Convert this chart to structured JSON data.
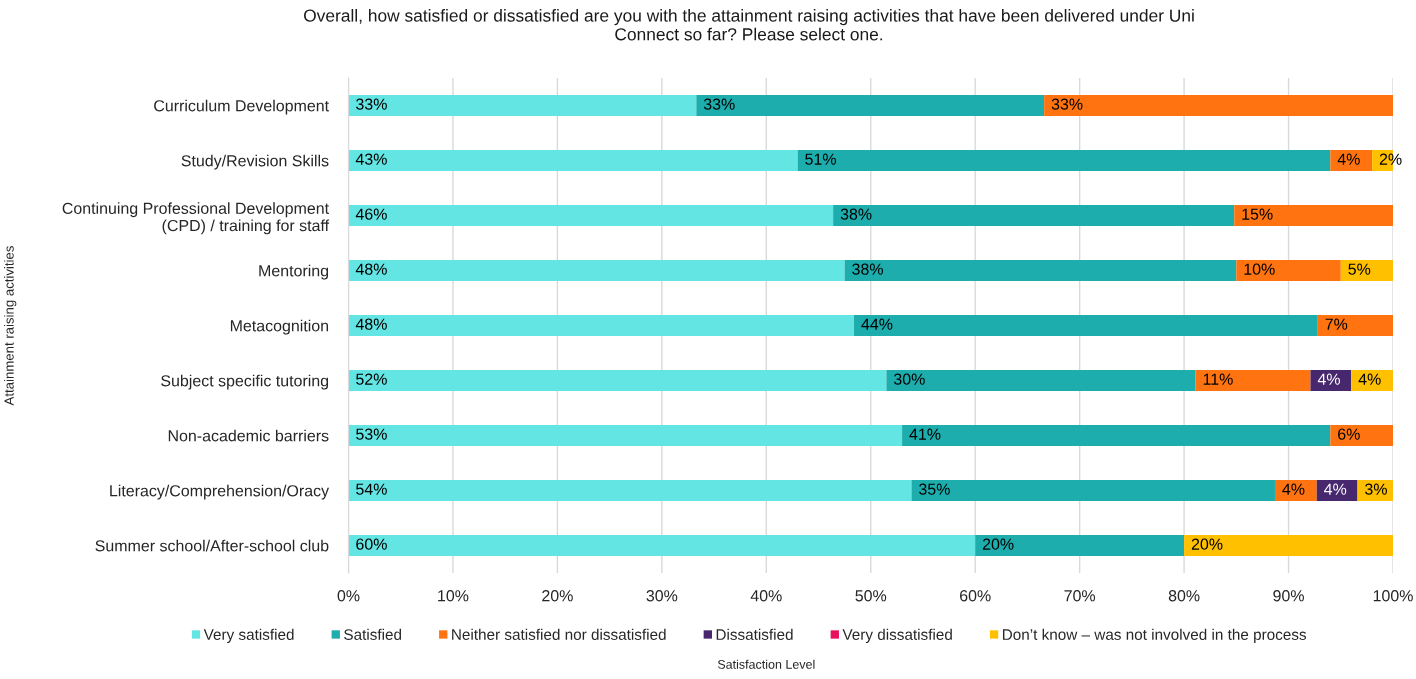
{
  "chart_data": {
    "type": "bar",
    "orientation": "horizontal",
    "stacked": true,
    "title": "Overall, how satisfied or dissatisfied are you with the attainment raising activities that have been delivered under Uni\nConnect so far? Please select one.",
    "xlabel": "Satisfaction Level",
    "ylabel": "Attainment raising activities",
    "categories": [
      "Curriculum Development",
      "Study/Revision Skills",
      "Continuing Professional Development\n(CPD) / training for staff",
      "Mentoring",
      "Metacognition",
      "Subject specific tutoring",
      "Non-academic barriers",
      "Literacy/Comprehension/Oracy",
      "Summer school/After-school club"
    ],
    "series": [
      {
        "name": "Very satisfied",
        "color": "#63e5e4",
        "values": [
          33.3,
          43,
          46.4,
          47.5,
          48.4,
          51.5,
          53,
          53.9,
          60
        ],
        "value_labels": [
          "33%",
          "43%",
          "46%",
          "48%",
          "48%",
          "52%",
          "53%",
          "54%",
          "60%"
        ]
      },
      {
        "name": "Satisfied",
        "color": "#1dadad",
        "values": [
          33.3,
          51,
          38.4,
          37.5,
          44.4,
          29.6,
          41,
          34.8,
          20
        ],
        "value_labels": [
          "33%",
          "51%",
          "38%",
          "38%",
          "44%",
          "30%",
          "41%",
          "35%",
          "20%"
        ]
      },
      {
        "name": "Neither satisfied nor dissatisfied",
        "color": "#ff7410",
        "values": [
          33.4,
          4,
          15.2,
          10,
          7.2,
          11.0,
          6,
          4.0,
          null
        ],
        "value_labels": [
          "33%",
          "4%",
          "15%",
          "10%",
          "7%",
          "11%",
          "6%",
          "4%",
          null
        ]
      },
      {
        "name": "Dissatisfied",
        "color": "#47286e",
        "values": [
          null,
          null,
          null,
          null,
          null,
          3.9,
          null,
          3.9,
          null
        ],
        "value_labels": [
          null,
          null,
          null,
          null,
          null,
          "4%",
          null,
          "4%",
          null
        ]
      },
      {
        "name": "Very dissatisfied",
        "color": "#e8115d",
        "values": [
          null,
          null,
          null,
          null,
          null,
          null,
          null,
          null,
          null
        ]
      },
      {
        "name": "Don’t know – was not involved in the process",
        "color": "#ffc000",
        "values": [
          null,
          2,
          null,
          5,
          null,
          4.0,
          null,
          3.4,
          20
        ],
        "value_labels": [
          null,
          "2%",
          null,
          "5%",
          null,
          "4%",
          null,
          "3%",
          "20%"
        ]
      }
    ],
    "xlim": [
      0,
      100
    ],
    "xticks": [
      {
        "value": 0,
        "label": "0%"
      },
      {
        "value": 10,
        "label": "10%"
      },
      {
        "value": 20,
        "label": "20%"
      },
      {
        "value": 30,
        "label": "30%"
      },
      {
        "value": 40,
        "label": "40%"
      },
      {
        "value": 50,
        "label": "50%"
      },
      {
        "value": 60,
        "label": "60%"
      },
      {
        "value": 70,
        "label": "70%"
      },
      {
        "value": 80,
        "label": "80%"
      },
      {
        "value": 90,
        "label": "90%"
      },
      {
        "value": 100,
        "label": "100%"
      }
    ],
    "grid": "x",
    "legend": "bottom"
  }
}
